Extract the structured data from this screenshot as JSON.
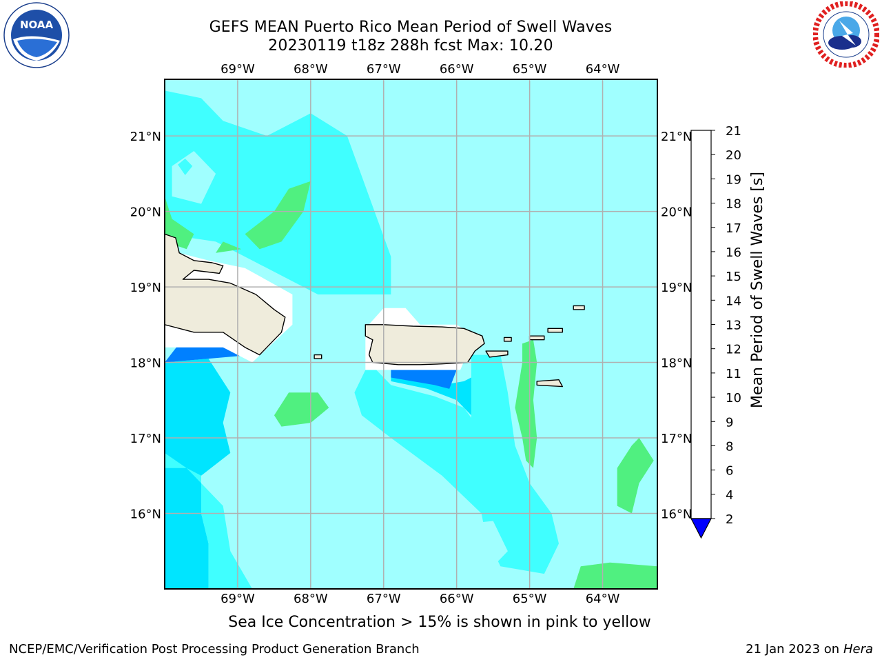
{
  "header": {
    "title_line1": "GEFS MEAN Puerto Rico Mean Period of Swell Waves",
    "title_line2": "20230119 t18z 288h fcst   Max: 10.20"
  },
  "note": "Sea Ice Concentration > 15% is shown in pink to yellow",
  "footer": {
    "left": "NCEP/EMC/Verification Post Processing Product Generation Branch",
    "right_date": "21 Jan 2023 on ",
    "right_machine": "Hera"
  },
  "logos": {
    "left": "noaa-logo",
    "right": "nws-logo",
    "left_text": "NOAA"
  },
  "map": {
    "lon_range": [
      -70.0,
      -63.25
    ],
    "lat_range": [
      15.0,
      21.75
    ],
    "lon_ticks": [
      {
        "value": -69,
        "label": "69°W"
      },
      {
        "value": -68,
        "label": "68°W"
      },
      {
        "value": -67,
        "label": "67°W"
      },
      {
        "value": -66,
        "label": "66°W"
      },
      {
        "value": -65,
        "label": "65°W"
      },
      {
        "value": -64,
        "label": "64°W"
      }
    ],
    "lat_ticks": [
      {
        "value": 21,
        "label": "21°N"
      },
      {
        "value": 20,
        "label": "20°N"
      },
      {
        "value": 19,
        "label": "19°N"
      },
      {
        "value": 18,
        "label": "18°N"
      },
      {
        "value": 17,
        "label": "17°N"
      },
      {
        "value": 16,
        "label": "16°N"
      }
    ],
    "grid": true,
    "background_level": 8,
    "colors": {
      "land": "#efecdc",
      "grid": "#b0b0b0",
      "coast": "#000000",
      "missing": "#ffffff"
    },
    "regions": [
      {
        "name": "swell-period-6-8-northwest",
        "level": 7,
        "poly": [
          [
            -70.0,
            21.6
          ],
          [
            -69.5,
            21.5
          ],
          [
            -69.2,
            21.2
          ],
          [
            -68.6,
            21.0
          ],
          [
            -68.0,
            21.3
          ],
          [
            -67.5,
            21.0
          ],
          [
            -67.2,
            20.2
          ],
          [
            -66.9,
            19.4
          ],
          [
            -66.9,
            18.9
          ],
          [
            -67.9,
            18.9
          ],
          [
            -68.3,
            19.1
          ],
          [
            -68.7,
            19.3
          ],
          [
            -69.3,
            19.6
          ],
          [
            -70.0,
            19.7
          ]
        ]
      },
      {
        "name": "swell-period-8-9-northwest-patch",
        "level": 8,
        "poly": [
          [
            -69.9,
            20.6
          ],
          [
            -69.6,
            20.8
          ],
          [
            -69.3,
            20.5
          ],
          [
            -69.5,
            20.1
          ],
          [
            -69.9,
            20.2
          ]
        ]
      },
      {
        "name": "swell-period-4-6-spot",
        "level": 6,
        "poly": [
          [
            -69.82,
            20.62
          ],
          [
            -69.72,
            20.7
          ],
          [
            -69.62,
            20.6
          ],
          [
            -69.72,
            20.48
          ]
        ]
      },
      {
        "name": "swell-period-9-10-patch-north",
        "level": 9,
        "poly": [
          [
            -68.9,
            19.7
          ],
          [
            -68.5,
            20.0
          ],
          [
            -68.3,
            20.3
          ],
          [
            -68.0,
            20.4
          ],
          [
            -68.1,
            20.0
          ],
          [
            -68.4,
            19.6
          ],
          [
            -68.7,
            19.5
          ]
        ]
      },
      {
        "name": "swell-period-9-10-patch-hispaniola",
        "level": 9,
        "poly": [
          [
            -70.0,
            19.6
          ],
          [
            -69.7,
            19.5
          ],
          [
            -69.6,
            19.7
          ],
          [
            -69.9,
            19.9
          ],
          [
            -70.0,
            20.2
          ]
        ]
      },
      {
        "name": "swell-period-9-10-sliver",
        "level": 9,
        "poly": [
          [
            -69.3,
            19.45
          ],
          [
            -68.95,
            19.5
          ],
          [
            -69.2,
            19.6
          ]
        ]
      },
      {
        "name": "swell-period-4-6-coastal-strip",
        "level": 6,
        "poly": [
          [
            -67.2,
            18.0
          ],
          [
            -66.9,
            17.7
          ],
          [
            -66.3,
            17.55
          ],
          [
            -65.9,
            17.4
          ],
          [
            -65.6,
            17.0
          ],
          [
            -65.4,
            16.4
          ],
          [
            -65.2,
            15.9
          ],
          [
            -65.5,
            15.85
          ],
          [
            -66.2,
            16.5
          ],
          [
            -66.9,
            17.0
          ],
          [
            -67.3,
            17.3
          ],
          [
            -67.4,
            17.6
          ]
        ]
      },
      {
        "name": "swell-period-2-4-south-pr",
        "level": 4,
        "poly": [
          [
            -66.9,
            17.75
          ],
          [
            -66.4,
            17.65
          ],
          [
            -66.0,
            17.5
          ],
          [
            -65.7,
            17.2
          ],
          [
            -65.65,
            17.55
          ],
          [
            -65.7,
            17.85
          ],
          [
            -65.9,
            17.75
          ],
          [
            -66.2,
            17.7
          ],
          [
            -66.9,
            17.85
          ]
        ]
      },
      {
        "name": "swell-period-2-4-spot",
        "level": 4,
        "poly": [
          [
            -65.55,
            16.8
          ],
          [
            -65.45,
            16.85
          ],
          [
            -65.42,
            16.6
          ]
        ]
      },
      {
        "name": "swell-period-2-4-southwest",
        "level": 4,
        "poly": [
          [
            -70.0,
            18.0
          ],
          [
            -69.4,
            18.05
          ],
          [
            -69.1,
            17.6
          ],
          [
            -69.2,
            17.2
          ],
          [
            -69.1,
            16.8
          ],
          [
            -69.5,
            16.5
          ],
          [
            -69.5,
            16.0
          ],
          [
            -69.4,
            15.6
          ],
          [
            -69.4,
            15.0
          ],
          [
            -70.0,
            15.0
          ]
        ]
      },
      {
        "name": "swell-period-4-6-southwest",
        "level": 6,
        "poly": [
          [
            -70.0,
            16.8
          ],
          [
            -69.7,
            16.6
          ],
          [
            -69.2,
            16.1
          ],
          [
            -69.1,
            15.5
          ],
          [
            -68.8,
            15.0
          ],
          [
            -69.4,
            15.0
          ],
          [
            -69.4,
            15.6
          ],
          [
            -69.5,
            16.0
          ],
          [
            -69.5,
            16.5
          ],
          [
            -69.7,
            16.6
          ],
          [
            -70.0,
            16.6
          ]
        ]
      },
      {
        "name": "swell-period-0-2-hispaniola-south",
        "level": 2,
        "poly": [
          [
            -70.0,
            18.0
          ],
          [
            -69.8,
            18.25
          ],
          [
            -69.0,
            18.25
          ],
          [
            -68.8,
            18.1
          ],
          [
            -69.4,
            18.05
          ]
        ]
      },
      {
        "name": "swell-period-0-2-pr-south",
        "level": 2,
        "poly": [
          [
            -66.9,
            17.9
          ],
          [
            -66.0,
            17.9
          ],
          [
            -66.1,
            17.65
          ],
          [
            -66.3,
            17.7
          ],
          [
            -66.9,
            17.8
          ]
        ]
      },
      {
        "name": "swell-period-9-10-south-patch",
        "level": 9,
        "poly": [
          [
            -68.5,
            17.3
          ],
          [
            -68.3,
            17.6
          ],
          [
            -67.9,
            17.6
          ],
          [
            -67.75,
            17.4
          ],
          [
            -68.0,
            17.2
          ],
          [
            -68.4,
            17.15
          ]
        ]
      },
      {
        "name": "swell-period-6-8-south-east",
        "level": 7,
        "poly": [
          [
            -65.8,
            18.1
          ],
          [
            -65.4,
            18.1
          ],
          [
            -65.3,
            17.6
          ],
          [
            -65.2,
            16.9
          ],
          [
            -65.0,
            16.4
          ],
          [
            -64.7,
            16.0
          ],
          [
            -64.6,
            15.6
          ],
          [
            -64.8,
            15.2
          ],
          [
            -65.4,
            15.3
          ],
          [
            -65.6,
            15.7
          ],
          [
            -65.7,
            16.2
          ],
          [
            -65.8,
            17.0
          ],
          [
            -65.8,
            17.5
          ]
        ]
      },
      {
        "name": "swell-period-9-10-virgin-strip",
        "level": 9,
        "poly": [
          [
            -65.1,
            18.25
          ],
          [
            -64.95,
            18.3
          ],
          [
            -64.9,
            18.0
          ],
          [
            -64.95,
            17.5
          ],
          [
            -64.9,
            17.0
          ],
          [
            -64.95,
            16.6
          ],
          [
            -65.05,
            16.7
          ],
          [
            -65.1,
            17.0
          ],
          [
            -65.2,
            17.4
          ],
          [
            -65.1,
            18.0
          ]
        ]
      },
      {
        "name": "swell-period-9-10-east-patch",
        "level": 9,
        "poly": [
          [
            -63.8,
            16.6
          ],
          [
            -63.6,
            16.9
          ],
          [
            -63.5,
            17.0
          ],
          [
            -63.3,
            16.7
          ],
          [
            -63.5,
            16.4
          ],
          [
            -63.6,
            16.0
          ],
          [
            -63.8,
            16.1
          ]
        ]
      },
      {
        "name": "swell-period-9-10-southeast-patch",
        "level": 9,
        "poly": [
          [
            -64.4,
            15.0
          ],
          [
            -64.3,
            15.3
          ],
          [
            -63.9,
            15.35
          ],
          [
            -63.25,
            15.3
          ],
          [
            -63.25,
            15.0
          ]
        ]
      },
      {
        "name": "swell-period-8-9-southeast-light",
        "level": 8,
        "poly": [
          [
            -66.0,
            15.4
          ],
          [
            -66.2,
            15.6
          ],
          [
            -66.0,
            15.85
          ],
          [
            -65.5,
            15.9
          ],
          [
            -65.3,
            15.5
          ],
          [
            -65.5,
            15.3
          ]
        ]
      },
      {
        "name": "swell-period-8-9-south-light",
        "level": 8,
        "poly": [
          [
            -68.7,
            15.6
          ],
          [
            -68.5,
            16.0
          ],
          [
            -68.1,
            15.9
          ],
          [
            -67.9,
            15.6
          ],
          [
            -68.2,
            15.3
          ],
          [
            -68.5,
            15.4
          ]
        ]
      },
      {
        "name": "swell-period-8-9-small",
        "level": 8,
        "poly": [
          [
            -68.6,
            16.8
          ],
          [
            -68.4,
            16.9
          ],
          [
            -68.35,
            16.7
          ]
        ]
      }
    ],
    "land": [
      {
        "name": "hispaniola-east-landmass",
        "poly": [
          [
            -70.0,
            19.7
          ],
          [
            -69.85,
            19.65
          ],
          [
            -69.8,
            19.45
          ],
          [
            -69.6,
            19.35
          ],
          [
            -69.35,
            19.32
          ],
          [
            -69.2,
            19.28
          ],
          [
            -69.25,
            19.18
          ],
          [
            -69.6,
            19.22
          ],
          [
            -69.75,
            19.1
          ],
          [
            -69.4,
            19.1
          ],
          [
            -69.1,
            19.05
          ],
          [
            -68.75,
            18.9
          ],
          [
            -68.5,
            18.7
          ],
          [
            -68.35,
            18.6
          ],
          [
            -68.4,
            18.4
          ],
          [
            -68.6,
            18.2
          ],
          [
            -68.7,
            18.1
          ],
          [
            -68.9,
            18.2
          ],
          [
            -69.2,
            18.4
          ],
          [
            -69.6,
            18.4
          ],
          [
            -70.0,
            18.5
          ]
        ]
      },
      {
        "name": "puerto-rico-landmass",
        "poly": [
          [
            -67.25,
            18.5
          ],
          [
            -67.0,
            18.5
          ],
          [
            -66.6,
            18.48
          ],
          [
            -66.2,
            18.47
          ],
          [
            -65.9,
            18.45
          ],
          [
            -65.65,
            18.35
          ],
          [
            -65.62,
            18.25
          ],
          [
            -65.75,
            18.15
          ],
          [
            -65.85,
            18.0
          ],
          [
            -66.2,
            17.98
          ],
          [
            -66.5,
            17.97
          ],
          [
            -66.8,
            17.97
          ],
          [
            -67.15,
            18.0
          ],
          [
            -67.2,
            18.1
          ],
          [
            -67.15,
            18.3
          ],
          [
            -67.25,
            18.35
          ]
        ]
      },
      {
        "name": "vieques-island",
        "poly": [
          [
            -65.6,
            18.15
          ],
          [
            -65.3,
            18.15
          ],
          [
            -65.3,
            18.1
          ],
          [
            -65.55,
            18.07
          ]
        ]
      },
      {
        "name": "st-croix-island",
        "poly": [
          [
            -64.9,
            17.75
          ],
          [
            -64.6,
            17.77
          ],
          [
            -64.55,
            17.68
          ],
          [
            -64.9,
            17.7
          ]
        ]
      },
      {
        "name": "mona-island",
        "poly": [
          [
            -67.95,
            18.1
          ],
          [
            -67.85,
            18.1
          ],
          [
            -67.85,
            18.05
          ],
          [
            -67.95,
            18.05
          ]
        ]
      },
      {
        "name": "st-thomas-island",
        "poly": [
          [
            -65.0,
            18.35
          ],
          [
            -64.8,
            18.35
          ],
          [
            -64.8,
            18.3
          ],
          [
            -65.0,
            18.3
          ]
        ]
      },
      {
        "name": "tortola-island",
        "poly": [
          [
            -64.75,
            18.45
          ],
          [
            -64.55,
            18.45
          ],
          [
            -64.55,
            18.4
          ],
          [
            -64.75,
            18.4
          ]
        ]
      },
      {
        "name": "anegada-island",
        "poly": [
          [
            -64.4,
            18.75
          ],
          [
            -64.25,
            18.75
          ],
          [
            -64.25,
            18.7
          ],
          [
            -64.4,
            18.7
          ]
        ]
      },
      {
        "name": "culebra-island",
        "poly": [
          [
            -65.35,
            18.33
          ],
          [
            -65.25,
            18.33
          ],
          [
            -65.25,
            18.28
          ],
          [
            -65.35,
            18.28
          ]
        ]
      }
    ],
    "missing": [
      {
        "name": "missing-data-hispaniola",
        "poly": [
          [
            -70.0,
            18.2
          ],
          [
            -69.2,
            18.2
          ],
          [
            -68.8,
            18.0
          ],
          [
            -68.25,
            18.5
          ],
          [
            -68.25,
            18.9
          ],
          [
            -68.9,
            19.25
          ],
          [
            -69.4,
            19.35
          ],
          [
            -70.0,
            19.5
          ]
        ]
      },
      {
        "name": "missing-data-puerto-rico",
        "poly": [
          [
            -67.25,
            18.45
          ],
          [
            -67.0,
            18.72
          ],
          [
            -66.7,
            18.72
          ],
          [
            -66.5,
            18.5
          ],
          [
            -66.0,
            18.5
          ],
          [
            -65.75,
            18.35
          ],
          [
            -65.95,
            17.9
          ],
          [
            -67.25,
            17.9
          ]
        ]
      }
    ]
  },
  "colorbar": {
    "title": "Mean Period of Swell Waves [s]",
    "levels": [
      2,
      4,
      6,
      8,
      9,
      10,
      11,
      12,
      13,
      14,
      15,
      16,
      17,
      18,
      19,
      20,
      21
    ],
    "level_labels": [
      "2",
      "4",
      "6",
      "8",
      "9",
      "10",
      "11",
      "12",
      "13",
      "14",
      "15",
      "16",
      "17",
      "18",
      "19",
      "20",
      "21"
    ],
    "colors": [
      "#0080ff",
      "#00e5ff",
      "#40ffff",
      "#a0ffff",
      "#50f080",
      "#00e000",
      "#40d020",
      "#a0e000",
      "#c8ff00",
      "#e0f000",
      "#ffff00",
      "#ffd800",
      "#ffb000",
      "#ff8000",
      "#ff5000",
      "#ff2000"
    ],
    "under_color": "#0000ff"
  }
}
